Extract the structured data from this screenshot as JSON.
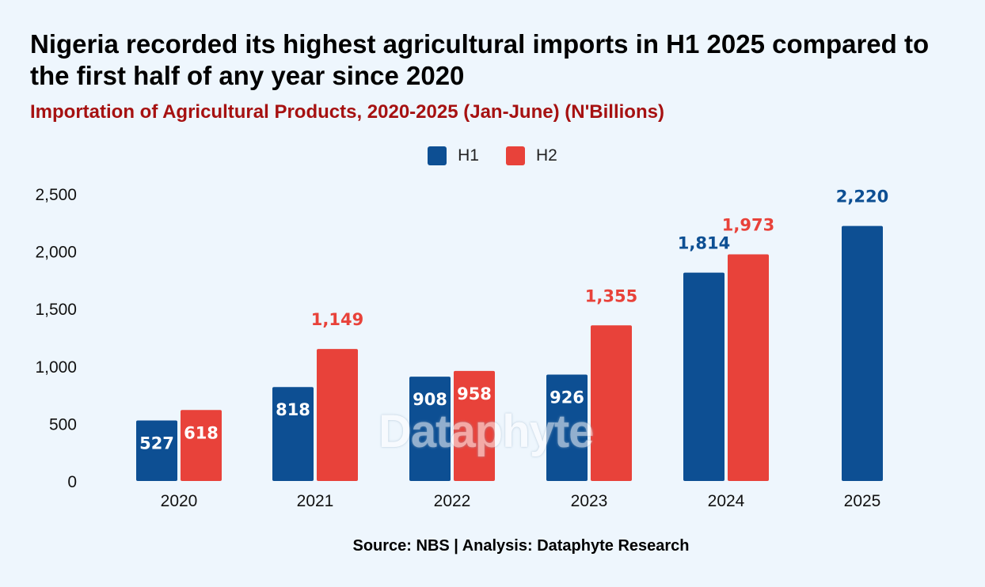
{
  "header": {
    "title": "Nigeria recorded its highest agricultural imports in H1 2025 compared to the first half of any year since 2020",
    "subtitle": "Importation of Agricultural Products, 2020-2025 (Jan-June) (N'Billions)"
  },
  "footer": {
    "source": "Source: NBS | Analysis: Dataphyte Research"
  },
  "watermark": "Dataphyte",
  "chart_data": {
    "type": "bar",
    "categories": [
      "2020",
      "2021",
      "2022",
      "2023",
      "2024",
      "2025"
    ],
    "series": [
      {
        "name": "H1",
        "color": "#0d4f93",
        "values": [
          527,
          818,
          908,
          926,
          1814,
          2220
        ],
        "labels": [
          "527",
          "818",
          "908",
          "926",
          "1,814",
          "2,220"
        ]
      },
      {
        "name": "H2",
        "color": "#e8423a",
        "values": [
          618,
          1149,
          958,
          1355,
          1973,
          null
        ],
        "labels": [
          "618",
          "1,149",
          "958",
          "1,355",
          "1,973",
          ""
        ]
      }
    ],
    "ylim": [
      0,
      2500
    ],
    "yticks": [
      0,
      500,
      1000,
      1500,
      2000,
      2500
    ],
    "ytick_labels": [
      "0",
      "500",
      "1,000",
      "1,500",
      "2,000",
      "2,500"
    ],
    "xlabel": "",
    "ylabel": "",
    "grid": false,
    "legend_position": "top-center"
  }
}
